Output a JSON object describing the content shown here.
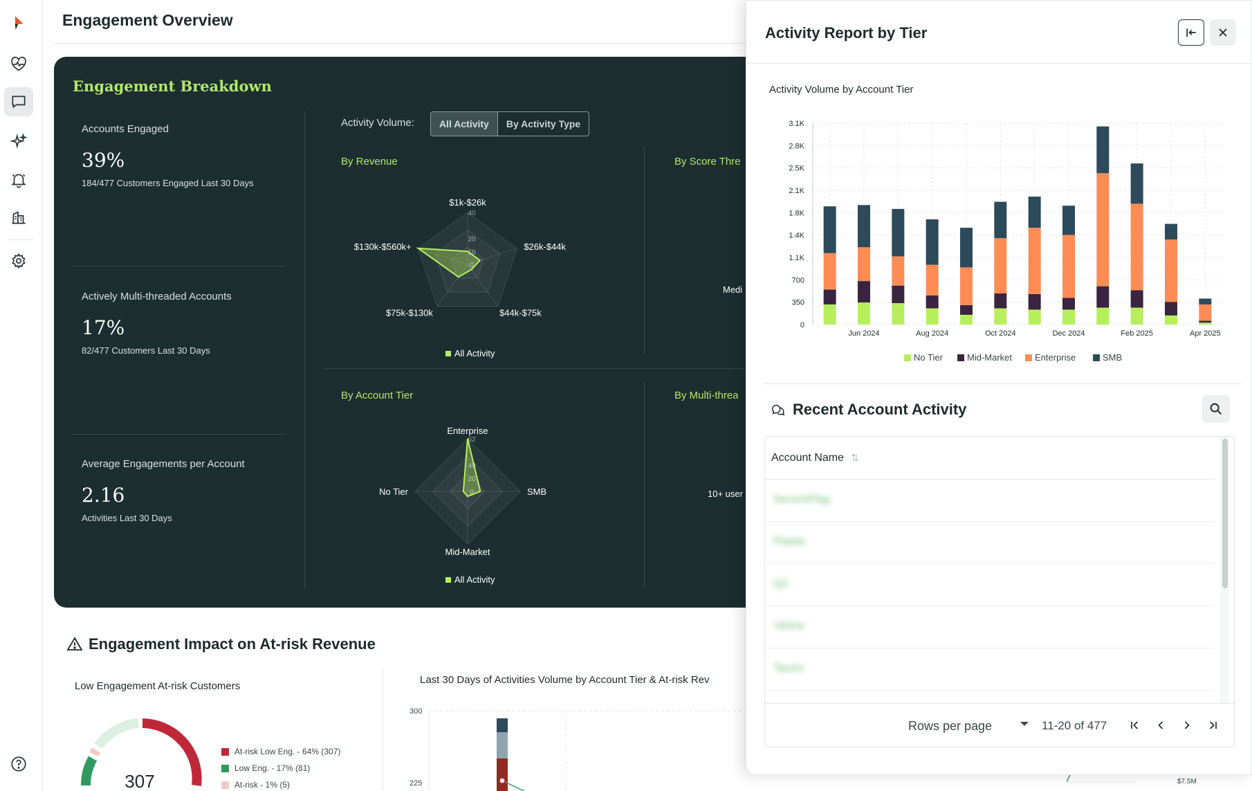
{
  "page": {
    "title": "Engagement Overview"
  },
  "breakdown": {
    "title": "Engagement Breakdown",
    "metrics": [
      {
        "label": "Accounts Engaged",
        "value": "39%",
        "sub": "184/477 Customers Engaged Last 30 Days"
      },
      {
        "label": "Actively Multi-threaded Accounts",
        "value": "17%",
        "sub": "82/477 Customers Last 30 Days"
      },
      {
        "label": "Average Engagements per Account",
        "value": "2.16",
        "sub": "Activities Last 30 Days"
      }
    ],
    "activity_volume_label": "Activity Volume:",
    "toggle": {
      "selected": "All Activity",
      "other": "By Activity Type"
    },
    "panels": {
      "by_revenue": "By Revenue",
      "by_score": "By Score Thre",
      "by_account_tier": "By Account Tier",
      "by_multi": "By Multi-threa"
    },
    "radar_revenue": {
      "axes": [
        "$1k-$26k",
        "$26k-$44k",
        "$44k-$75k",
        "$75k-$130k",
        "$130k-$560k+"
      ],
      "ticks": [
        "40",
        "20",
        "10",
        "0"
      ],
      "values": [
        10,
        10,
        5,
        12,
        40
      ],
      "max": 40,
      "legend": "All Activity"
    },
    "radar_tier": {
      "axes": [
        "Enterprise",
        "SMB",
        "Mid-Market",
        "No Tier"
      ],
      "ticks": [
        "62",
        "40",
        "20",
        "0"
      ],
      "values": [
        62,
        15,
        6,
        5
      ],
      "max": 62,
      "legend": "All Activity"
    },
    "cut_labels": {
      "score_axis": "Medi",
      "multi_axis": "10+ user"
    }
  },
  "impact": {
    "title": "Engagement Impact on At-risk Revenue",
    "low_engagement_title": "Low Engagement At-risk Customers",
    "donut_value": "307",
    "legend": [
      {
        "label": "At-risk Low Eng. - 64% (307)",
        "color": "#c0283a"
      },
      {
        "label": "Low Eng. - 17% (81)",
        "color": "#2f9a5f"
      },
      {
        "label": "At-risk - 1% (5)",
        "color": "#f2c9c4"
      }
    ],
    "last30_title": "Last 30 Days of Activities Volume by Account Tier & At-risk Rev",
    "y_ticks": [
      "300",
      "225"
    ],
    "right_tick": "$7.5M"
  },
  "drawer": {
    "title": "Activity Report by Tier",
    "chart_title": "Activity Volume by Account Tier",
    "recent_title": "Recent Account Activity",
    "table": {
      "header": "Account Name",
      "rows": [
        "SecureFlag",
        "Pepita",
        "Q2",
        "Vitrine",
        "Tauno"
      ]
    },
    "pager": {
      "rows_per_page": "Rows per page",
      "range": "11-20 of 477"
    }
  },
  "chart_data": [
    {
      "type": "bar",
      "stacked": true,
      "title": "Activity Volume by Account Tier",
      "categories": [
        "May 2024",
        "Jun 2024",
        "Jul 2024",
        "Aug 2024",
        "Sep 2024",
        "Oct 2024",
        "Nov 2024",
        "Dec 2024",
        "Jan 2025",
        "Feb 2025",
        "Mar 2025",
        "Apr 2025"
      ],
      "x_tick_labels": [
        "Jun 2024",
        "Aug 2024",
        "Oct 2024",
        "Dec 2024",
        "Feb 2025",
        "Apr 2025"
      ],
      "y_tick_labels": [
        "0",
        "350",
        "700",
        "1.1K",
        "1.4K",
        "1.8K",
        "2.1K",
        "2.5K",
        "2.8K",
        "3.1K"
      ],
      "ylim": [
        0,
        3100
      ],
      "legend_position": "bottom",
      "series": [
        {
          "name": "No Tier",
          "color": "#b7ef5c",
          "values": [
            310,
            340,
            330,
            250,
            150,
            250,
            230,
            230,
            260,
            260,
            140,
            30
          ]
        },
        {
          "name": "Mid-Market",
          "color": "#3a2440",
          "values": [
            230,
            330,
            270,
            200,
            150,
            230,
            240,
            180,
            330,
            270,
            210,
            30
          ]
        },
        {
          "name": "Enterprise",
          "color": "#ff8c55",
          "values": [
            560,
            520,
            450,
            470,
            580,
            850,
            1020,
            970,
            1740,
            1330,
            960,
            250
          ]
        },
        {
          "name": "SMB",
          "color": "#2d4a5a",
          "values": [
            720,
            650,
            730,
            700,
            610,
            560,
            480,
            450,
            720,
            620,
            240,
            90
          ]
        }
      ]
    }
  ]
}
